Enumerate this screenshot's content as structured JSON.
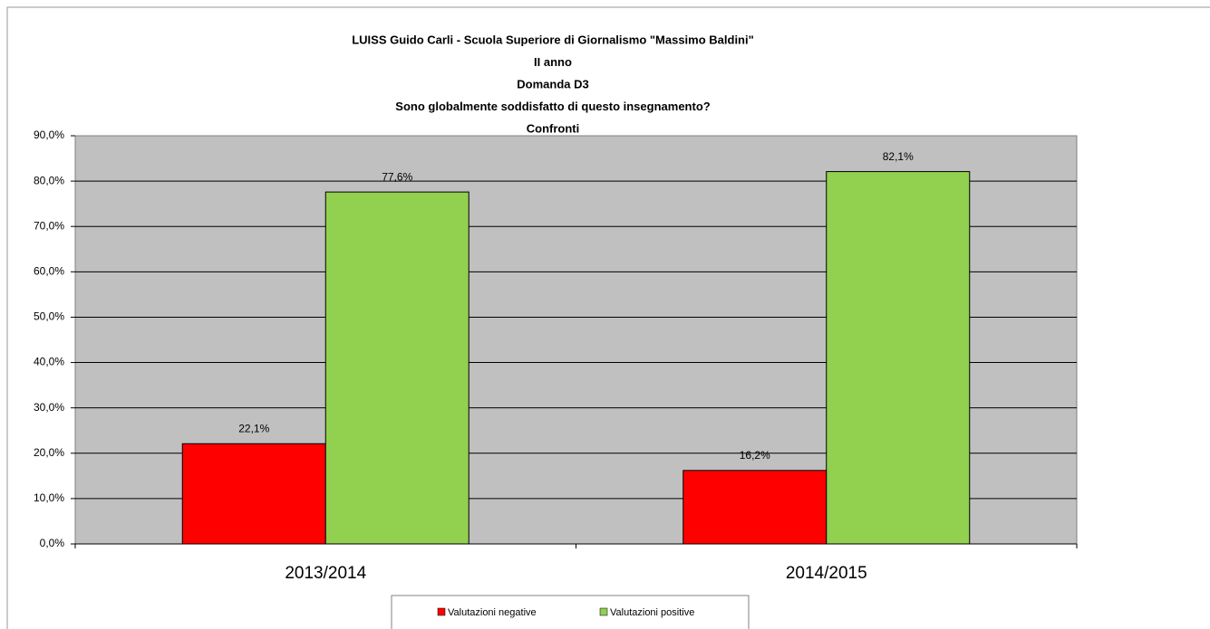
{
  "chart_data": {
    "type": "bar",
    "title": [
      "LUISS Guido Carli - Scuola Superiore di Giornalismo \"Massimo Baldini\"",
      "II anno",
      "Domanda D3",
      "Sono globalmente soddisfatto di questo insegnamento?",
      "Confronti"
    ],
    "categories": [
      "2013/2014",
      "2014/2015"
    ],
    "series": [
      {
        "name": "Valutazioni negative",
        "color": "#ff0000",
        "values": [
          22.1,
          16.2
        ],
        "value_labels": [
          "22,1%",
          "16,2%"
        ]
      },
      {
        "name": "Valutazioni positive",
        "color": "#92d050",
        "values": [
          77.6,
          82.1
        ],
        "value_labels": [
          "77,6%",
          "82,1%"
        ]
      }
    ],
    "ylim": [
      0,
      90
    ],
    "yticks": [
      {
        "value": 0,
        "label": "0,0%"
      },
      {
        "value": 10,
        "label": "10,0%"
      },
      {
        "value": 20,
        "label": "20,0%"
      },
      {
        "value": 30,
        "label": "30,0%"
      },
      {
        "value": 40,
        "label": "40,0%"
      },
      {
        "value": 50,
        "label": "50,0%"
      },
      {
        "value": 60,
        "label": "60,0%"
      },
      {
        "value": 70,
        "label": "70,0%"
      },
      {
        "value": 80,
        "label": "80,0%"
      },
      {
        "value": 90,
        "label": "90,0%"
      }
    ],
    "grid": true,
    "legend": "bottom"
  }
}
